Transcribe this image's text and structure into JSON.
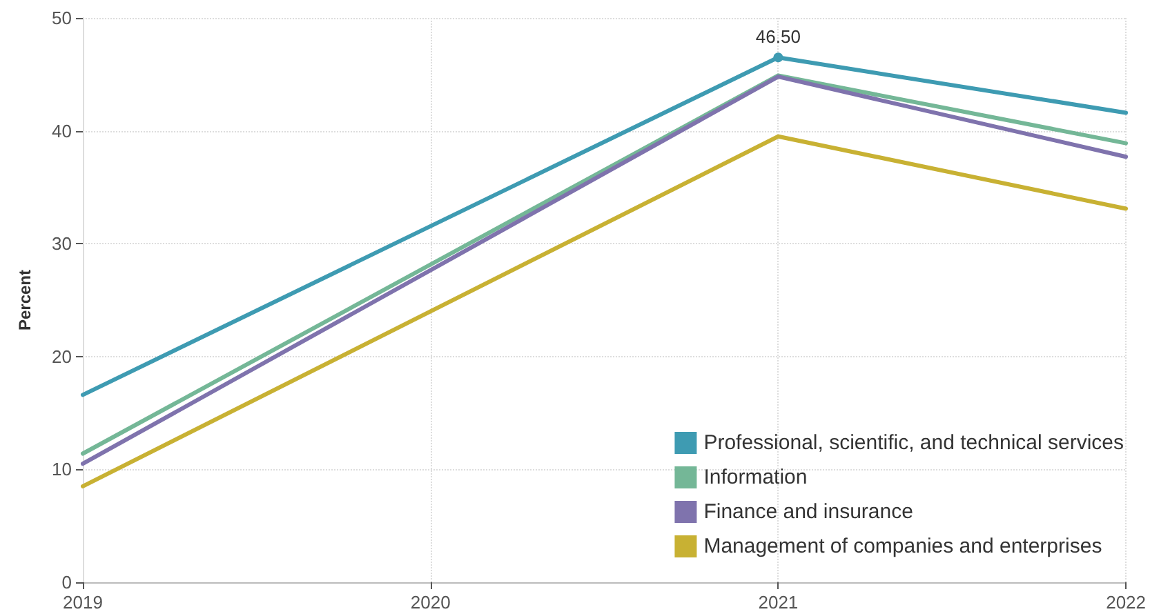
{
  "chart_data": {
    "type": "line",
    "ylabel": "Percent",
    "categories": [
      "2019",
      "2020",
      "2021",
      "2022"
    ],
    "series": [
      {
        "name": "Professional, scientific, and technical services",
        "color": "#3e9bb2",
        "values": [
          16.6,
          null,
          46.5,
          41.6
        ],
        "value_labels": [
          null,
          null,
          "46.50",
          null
        ]
      },
      {
        "name": "Information",
        "color": "#74b797",
        "values": [
          11.4,
          null,
          44.9,
          38.9
        ]
      },
      {
        "name": "Finance and insurance",
        "color": "#7f73ad",
        "values": [
          10.5,
          null,
          44.8,
          37.7
        ]
      },
      {
        "name": "Management of companies and enterprises",
        "color": "#c8b133",
        "values": [
          8.5,
          null,
          39.5,
          33.1
        ]
      }
    ],
    "ylim": [
      0,
      50
    ],
    "yticks": [
      0,
      10,
      20,
      30,
      40,
      50
    ],
    "grid": true,
    "legend": "bottom right",
    "marker": "none",
    "line_style": "solid"
  }
}
